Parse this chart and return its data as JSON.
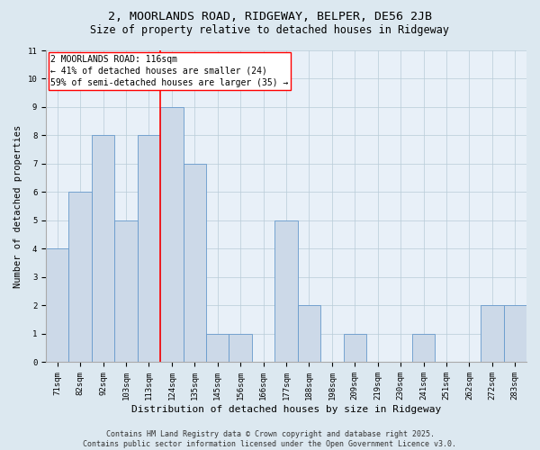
{
  "title1": "2, MOORLANDS ROAD, RIDGEWAY, BELPER, DE56 2JB",
  "title2": "Size of property relative to detached houses in Ridgeway",
  "xlabel": "Distribution of detached houses by size in Ridgeway",
  "ylabel": "Number of detached properties",
  "categories": [
    "71sqm",
    "82sqm",
    "92sqm",
    "103sqm",
    "113sqm",
    "124sqm",
    "135sqm",
    "145sqm",
    "156sqm",
    "166sqm",
    "177sqm",
    "188sqm",
    "198sqm",
    "209sqm",
    "219sqm",
    "230sqm",
    "241sqm",
    "251sqm",
    "262sqm",
    "272sqm",
    "283sqm"
  ],
  "values": [
    4,
    6,
    8,
    5,
    8,
    9,
    7,
    1,
    1,
    0,
    5,
    2,
    0,
    1,
    0,
    0,
    1,
    0,
    0,
    2,
    2
  ],
  "bar_color": "#ccd9e8",
  "bar_edge_color": "#6699cc",
  "red_line_index": 4,
  "annotation_line1": "2 MOORLANDS ROAD: 116sqm",
  "annotation_line2": "← 41% of detached houses are smaller (24)",
  "annotation_line3": "59% of semi-detached houses are larger (35) →",
  "annotation_box_color": "white",
  "annotation_box_edge_color": "red",
  "ylim": [
    0,
    11
  ],
  "yticks": [
    0,
    1,
    2,
    3,
    4,
    5,
    6,
    7,
    8,
    9,
    10,
    11
  ],
  "footer1": "Contains HM Land Registry data © Crown copyright and database right 2025.",
  "footer2": "Contains public sector information licensed under the Open Government Licence v3.0.",
  "bg_color": "#dce8f0",
  "plot_bg_color": "#e8f0f8",
  "grid_color": "#b8ccd8",
  "title1_fontsize": 9.5,
  "title2_fontsize": 8.5,
  "xlabel_fontsize": 8,
  "ylabel_fontsize": 7.5,
  "tick_fontsize": 6.5,
  "annotation_fontsize": 7,
  "footer_fontsize": 6
}
